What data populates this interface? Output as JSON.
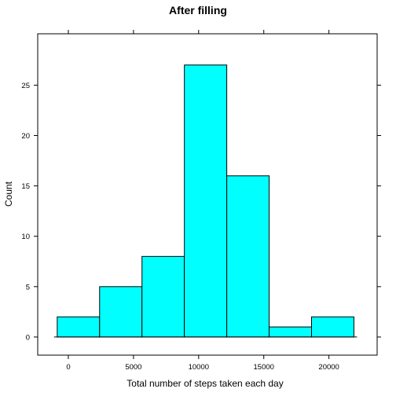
{
  "chart_data": {
    "type": "bar",
    "title": "After filling",
    "xlabel": "Total number of steps taken each day",
    "ylabel": "Count",
    "bins": [
      {
        "x0": -853,
        "x1": 2400,
        "count": 2
      },
      {
        "x0": 2400,
        "x1": 5653,
        "count": 5
      },
      {
        "x0": 5653,
        "x1": 8906,
        "count": 8
      },
      {
        "x0": 8906,
        "x1": 12159,
        "count": 27
      },
      {
        "x0": 12159,
        "x1": 15412,
        "count": 16
      },
      {
        "x0": 15412,
        "x1": 18665,
        "count": 1
      },
      {
        "x0": 18665,
        "x1": 21918,
        "count": 2
      }
    ],
    "xticks": [
      "0",
      "5000",
      "10000",
      "15000",
      "20000"
    ],
    "yticks": [
      "0",
      "5",
      "10",
      "15",
      "20",
      "25"
    ],
    "xlim": [
      -2350,
      23700
    ],
    "ylim": [
      -1.8,
      30.1
    ],
    "bar_color": "#00FFFF"
  }
}
